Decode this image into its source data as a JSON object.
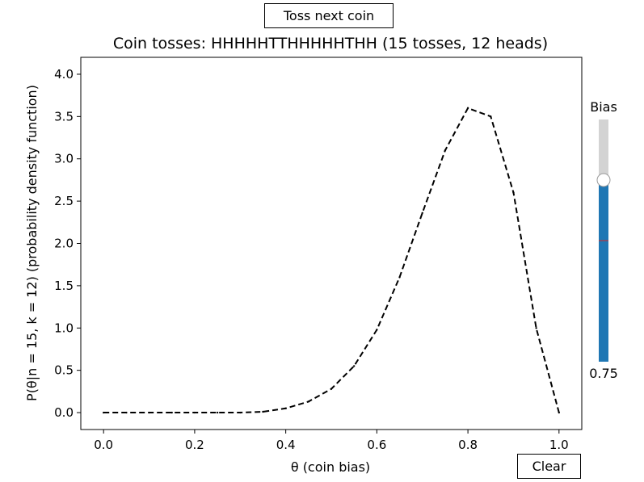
{
  "controls": {
    "toss_button_label": "Toss next coin",
    "clear_button_label": "Clear"
  },
  "slider": {
    "label": "Bias",
    "value": 0.75,
    "value_text": "0.75",
    "reference_value": 0.5,
    "min": 0.0,
    "max": 1.0,
    "fill_color": "#1f77b4",
    "track_color": "#d3d3d3",
    "reference_color": "#d62728"
  },
  "chart_data": {
    "type": "line",
    "title": "Coin tosses: HHHHHTTHHHHHTHH (15 tosses, 12 heads)",
    "xlabel": "θ (coin bias)",
    "ylabel": "P(θ|n = 15, k = 12) (probability density function)",
    "xlim": [
      -0.05,
      1.05
    ],
    "ylim": [
      -0.2,
      4.2
    ],
    "xticks": [
      0.0,
      0.2,
      0.4,
      0.6,
      0.8,
      1.0
    ],
    "xtick_labels": [
      "0.0",
      "0.2",
      "0.4",
      "0.6",
      "0.8",
      "1.0"
    ],
    "yticks": [
      0.0,
      0.5,
      1.0,
      1.5,
      2.0,
      2.5,
      3.0,
      3.5,
      4.0
    ],
    "ytick_labels": [
      "0.0",
      "0.5",
      "1.0",
      "1.5",
      "2.0",
      "2.5",
      "3.0",
      "3.5",
      "4.0"
    ],
    "grid": false,
    "series": [
      {
        "style": "dashed",
        "color": "#000000",
        "x": [
          0.0,
          0.05,
          0.1,
          0.15,
          0.2,
          0.25,
          0.3,
          0.35,
          0.4,
          0.45,
          0.5,
          0.55,
          0.6,
          0.65,
          0.7,
          0.75,
          0.8,
          0.85,
          0.9,
          0.95,
          1.0
        ],
        "y": [
          0.0,
          0.0,
          0.0,
          0.0,
          0.0,
          0.0,
          0.0,
          0.01,
          0.05,
          0.13,
          0.28,
          0.55,
          0.98,
          1.6,
          2.36,
          3.1,
          3.6,
          3.5,
          2.6,
          1.0,
          0.0
        ]
      }
    ]
  }
}
